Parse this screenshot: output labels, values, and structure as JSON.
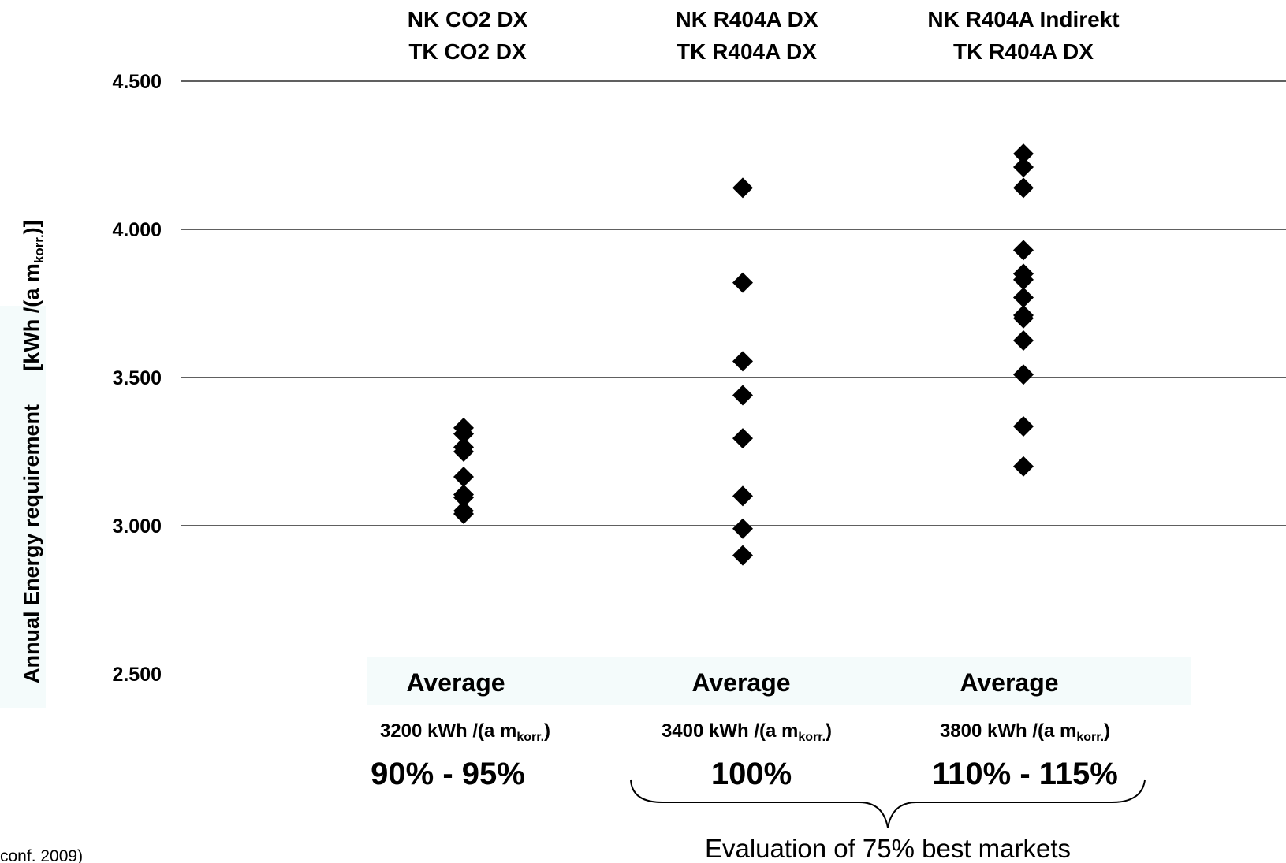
{
  "chart_data": {
    "type": "scatter",
    "ylabel_main": "Annual Energy requirement",
    "ylabel_unit_prefix": "[kWh /(a m",
    "ylabel_unit_sub": "korr.",
    "ylabel_unit_suffix": ")]",
    "ylim": [
      2500,
      4500
    ],
    "yticks": [
      "4.500",
      "4.000",
      "3.500",
      "3.000",
      "2.500"
    ],
    "ytick_values": [
      4500,
      4000,
      3500,
      3000,
      2500
    ],
    "gridlines": [
      4500,
      4000,
      3500,
      3000
    ],
    "grid": true,
    "marker": "diamond",
    "marker_color": "#000000",
    "groups": [
      {
        "line1": "NK CO2 DX",
        "line2": "TK CO2 DX",
        "values": [
          3330,
          3310,
          3265,
          3250,
          3165,
          3105,
          3095,
          3050,
          3040
        ],
        "avg_title": "Average",
        "avg_value_prefix": "3200 kWh /(a m",
        "avg_value_sub": "korr.",
        "avg_value_suffix": ")",
        "percent": "90% - 95%"
      },
      {
        "line1": "NK R404A DX",
        "line2": "TK R404A DX",
        "values": [
          4140,
          3820,
          3555,
          3440,
          3295,
          3100,
          2990,
          2900
        ],
        "avg_title": "Average",
        "avg_value_prefix": "3400 kWh /(a m",
        "avg_value_sub": "korr.",
        "avg_value_suffix": ")",
        "percent": "100%"
      },
      {
        "line1": "NK R404A Indirekt",
        "line2": "TK R404A DX",
        "values": [
          4255,
          4210,
          4140,
          3930,
          3850,
          3830,
          3770,
          3710,
          3700,
          3625,
          3510,
          3335,
          3200
        ],
        "avg_title": "Average",
        "avg_value_prefix": "3800 kWh /(a m",
        "avg_value_sub": "korr.",
        "avg_value_suffix": ")",
        "percent": "110% - 115%"
      }
    ],
    "bracket_note": "Evaluation of 75% best markets",
    "source_fragment": "conf. 2009)",
    "average_box_color": "#f4fbfb"
  }
}
